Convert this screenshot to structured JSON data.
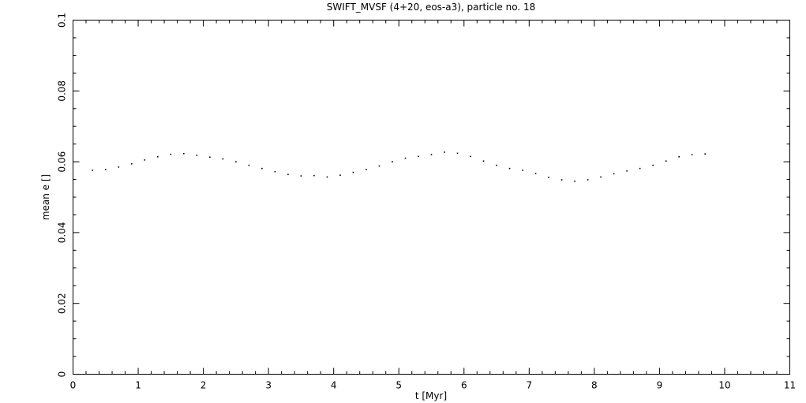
{
  "chart_data": {
    "type": "scatter",
    "title": "SWIFT_MVSF (4+20, eos-a3), particle no. 18",
    "xlabel": "t [Myr]",
    "ylabel": "mean e []",
    "xlim": [
      0,
      11
    ],
    "ylim": [
      0,
      0.1
    ],
    "xticks": [
      0,
      1,
      2,
      3,
      4,
      5,
      6,
      7,
      8,
      9,
      10,
      11
    ],
    "yticks": [
      0,
      0.02,
      0.04,
      0.06,
      0.08,
      0.1
    ],
    "color": "#000000",
    "x": [
      0.3,
      0.5,
      0.7,
      0.9,
      1.1,
      1.3,
      1.5,
      1.7,
      1.9,
      2.1,
      2.3,
      2.5,
      2.7,
      2.9,
      3.1,
      3.3,
      3.5,
      3.7,
      3.9,
      4.1,
      4.3,
      4.5,
      4.7,
      4.9,
      5.1,
      5.3,
      5.5,
      5.7,
      5.9,
      6.1,
      6.3,
      6.5,
      6.7,
      6.9,
      7.1,
      7.3,
      7.5,
      7.7,
      7.9,
      8.1,
      8.3,
      8.5,
      8.7,
      8.9,
      9.1,
      9.3,
      9.5,
      9.7
    ],
    "values": [
      0.0576,
      0.0578,
      0.0585,
      0.0594,
      0.0605,
      0.0614,
      0.0621,
      0.0623,
      0.0618,
      0.0613,
      0.0608,
      0.06,
      0.059,
      0.0581,
      0.0572,
      0.0564,
      0.056,
      0.0561,
      0.0557,
      0.0562,
      0.057,
      0.0578,
      0.0588,
      0.06,
      0.061,
      0.0615,
      0.062,
      0.0627,
      0.0624,
      0.0615,
      0.0602,
      0.059,
      0.0581,
      0.0576,
      0.0567,
      0.0556,
      0.0549,
      0.0545,
      0.0549,
      0.0557,
      0.0566,
      0.0574,
      0.0581,
      0.059,
      0.0602,
      0.0614,
      0.062,
      0.0622
    ]
  }
}
